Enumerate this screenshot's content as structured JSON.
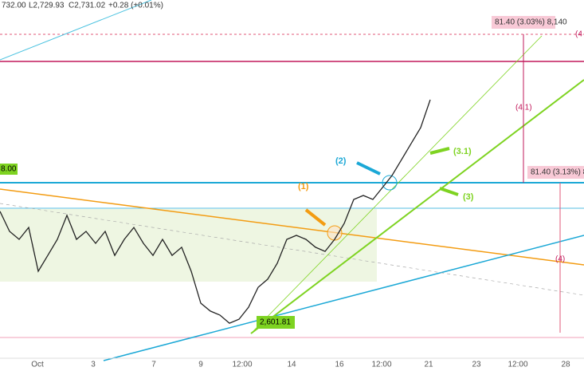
{
  "header": {
    "open": "732.00",
    "low": "L2,729.93",
    "close": "C2,731.02",
    "change": "+0.28 (+0.01%)"
  },
  "chart_data": {
    "type": "line",
    "ylim": [
      2574.8,
      2780.5
    ],
    "color": "#222222",
    "values": [
      2663.3,
      2652.2,
      2647.8,
      2654.4,
      2630.1,
      2638.9,
      2647.8,
      2661.1,
      2647.8,
      2652.2,
      2645.6,
      2652.2,
      2638.9,
      2647.8,
      2654.4,
      2645.6,
      2638.9,
      2647.8,
      2638.9,
      2643.4,
      2630.1,
      2612.4,
      2608.0,
      2605.8,
      2601.3,
      2603.5,
      2610.2,
      2621.2,
      2625.7,
      2634.5,
      2647.8,
      2650.0,
      2647.8,
      2643.4,
      2641.1,
      2647.8,
      2656.6,
      2669.9,
      2672.1,
      2669.9,
      2676.5,
      2683.2,
      2692.0,
      2700.9,
      2709.7,
      2725.2
    ]
  },
  "annotations": {
    "measure_top": "81.40 (3.03%) 8,140",
    "measure_right": "81.40 (3.13%) 8,14",
    "label_4_1": "(4.1)",
    "label_4": "(4)",
    "label_4_edge": "(4",
    "label_3_1": "(3.1)",
    "label_3": "(3)",
    "label_2": "(2)",
    "label_1": "(1)",
    "level_left": "8.00",
    "low_label": "2,601.81"
  },
  "x_axis": [
    "Oct",
    "3",
    "7",
    "9",
    "12:00",
    "14",
    "16",
    "12:00",
    "21",
    "23",
    "12:00",
    "28"
  ]
}
